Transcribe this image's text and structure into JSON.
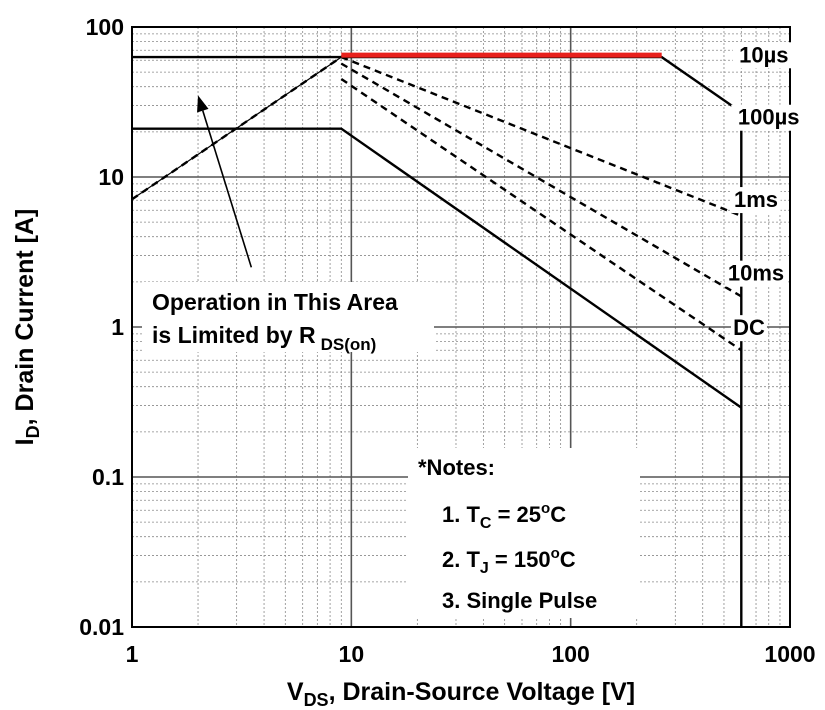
{
  "chart_data": {
    "type": "line",
    "title": "",
    "xlabel": {
      "main": "V",
      "sub": "DS",
      "rest": ", Drain-Source Voltage [V]"
    },
    "ylabel": {
      "main": "I",
      "sub": "D",
      "rest": ", Drain Current [A]"
    },
    "xscale": "log",
    "yscale": "log",
    "xlim": [
      1,
      1000
    ],
    "ylim": [
      0.01,
      100
    ],
    "grid": true,
    "x_ticks": [
      "1",
      "10",
      "100",
      "1000"
    ],
    "y_ticks": [
      "0.01",
      "0.1",
      "1",
      "10",
      "100"
    ],
    "series": [
      {
        "name": "10µs",
        "style": "solid",
        "points": [
          [
            1,
            63
          ],
          [
            260,
            63
          ],
          [
            600,
            27
          ],
          [
            600,
            0.01
          ]
        ]
      },
      {
        "name": "100µs",
        "style": "dashed",
        "points": [
          [
            9,
            63
          ],
          [
            600,
            5.5
          ]
        ]
      },
      {
        "name": "1ms",
        "style": "dashed",
        "points": [
          [
            9,
            57
          ],
          [
            600,
            1.6
          ]
        ]
      },
      {
        "name": "10ms",
        "style": "dashed",
        "points": [
          [
            9,
            45
          ],
          [
            600,
            0.7
          ]
        ]
      },
      {
        "name": "DC",
        "style": "solid",
        "points": [
          [
            1,
            21
          ],
          [
            9,
            21
          ],
          [
            600,
            0.29
          ]
        ]
      },
      {
        "name": "",
        "style": "dashed",
        "points": [
          [
            1,
            7.1
          ],
          [
            9,
            63
          ]
        ]
      }
    ],
    "rds_limit_line": {
      "style": "solid",
      "points": [
        [
          1,
          7.1
        ],
        [
          9,
          63
        ]
      ]
    },
    "highlight": {
      "color": "#e8201c",
      "points": [
        [
          9,
          65
        ],
        [
          260,
          65
        ]
      ]
    },
    "curve_labels": [
      {
        "series": "10µs",
        "text": "10µs",
        "at": [
          760,
          60
        ]
      },
      {
        "series": "100µs",
        "text": "100µs",
        "at": [
          800,
          23
        ]
      },
      {
        "series": "1ms",
        "text": "1ms",
        "at": [
          700,
          6.5
        ]
      },
      {
        "series": "10ms",
        "text": "10ms",
        "at": [
          700,
          2.1
        ]
      },
      {
        "series": "DC",
        "text": "DC",
        "at": [
          650,
          0.91
        ]
      }
    ],
    "annotation": {
      "line1": "Operation in This Area",
      "line2_main": "is Limited by R",
      "line2_sub": "DS(on)",
      "arrow_to": [
        2,
        35
      ],
      "arrow_from": [
        3.5,
        2.5
      ]
    },
    "notes": {
      "title": "*Notes:",
      "items": [
        {
          "prefix": "1. T",
          "sub": "C",
          "mid": " = 25",
          "sup": "o",
          "suffix": "C"
        },
        {
          "prefix": "2. T",
          "sub": "J",
          "mid": " = 150",
          "sup": "o",
          "suffix": "C"
        },
        {
          "prefix": "3. Single Pulse",
          "sub": "",
          "mid": "",
          "sup": "",
          "suffix": ""
        }
      ]
    },
    "colors": {
      "line": "#000000",
      "major_grid": "#555555",
      "minor_grid": "#8a8a8a",
      "highlight": "#e8201c"
    }
  }
}
